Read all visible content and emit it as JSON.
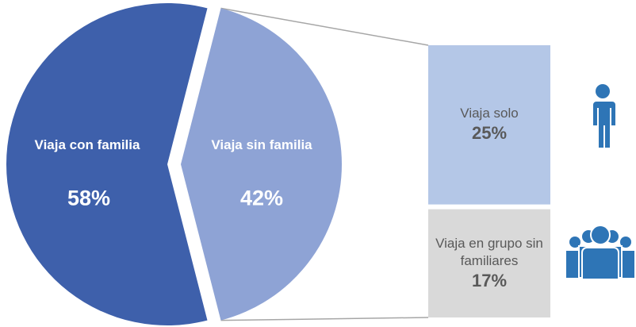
{
  "chart_data": {
    "type": "pie-of-bar",
    "slices": {
      "categories": [
        "Viaja con familia",
        "Viaja sin familia"
      ],
      "values": [
        58,
        42
      ],
      "value_labels": [
        "58%",
        "42%"
      ],
      "colors": [
        "#3e60ab",
        "#8ea3d5"
      ]
    },
    "breakdown": {
      "categories": [
        "Viaja solo",
        "Viaja en grupo sin familiares"
      ],
      "values": [
        25,
        17
      ],
      "value_labels": [
        "25%",
        "17%"
      ],
      "colors": [
        "#b4c7e7",
        "#d9d9d9"
      ]
    }
  }
}
